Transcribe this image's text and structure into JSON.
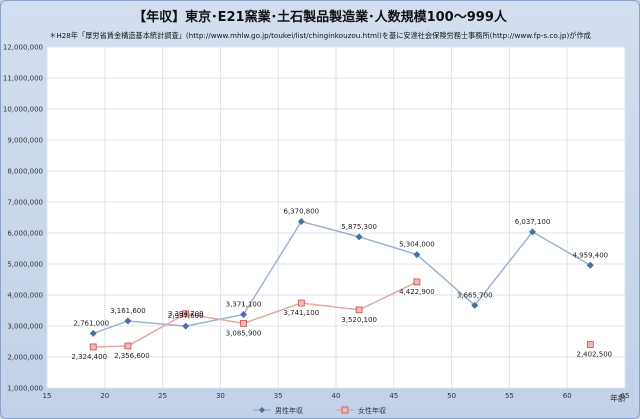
{
  "header": {
    "title": "【年収】東京･E21窯業･土石製品製造業･人数規模100～999人",
    "subtitle": "＊H28年「厚労省賃金構造基本統計調査」(http://www.mhlw.go.jp/toukei/list/chinginkouzou.html)を基に安達社会保険労務士事務所(http://www.fp-s.co.jp)が作成"
  },
  "chart_data": {
    "type": "line",
    "title": "【年収】東京･E21窯業･土石製品製造業･人数規模100～999人",
    "xlabel": "年齢",
    "ylabel": "",
    "xlim": [
      15,
      65
    ],
    "ylim": [
      1000000,
      12000000
    ],
    "x_ticks": [
      "15",
      "20",
      "25",
      "30",
      "35",
      "40",
      "45",
      "50",
      "55",
      "60",
      "65"
    ],
    "y_ticks": [
      "1,000,000",
      "2,000,000",
      "3,000,000",
      "4,000,000",
      "5,000,000",
      "6,000,000",
      "7,000,000",
      "8,000,000",
      "9,000,000",
      "10,000,000",
      "11,000,000",
      "12,000,000"
    ],
    "grid": true,
    "legend_position": "bottom",
    "series": [
      {
        "name": "男性年収",
        "color": "#4a6fa5",
        "marker": "diamond",
        "x": [
          19,
          22,
          27,
          32,
          37,
          42,
          47,
          52,
          57,
          62
        ],
        "y": [
          2761000,
          3161600,
          2997600,
          3371100,
          6370800,
          5875300,
          5304000,
          3665700,
          6037100,
          4959400
        ],
        "labels": [
          "2,761,000",
          "3,161,600",
          "2,997,600",
          "3,371,100",
          "6,370,800",
          "5,875,300",
          "5,304,000",
          "3,665,700",
          "6,037,100",
          "4,959,400"
        ]
      },
      {
        "name": "女性年収",
        "color": "#c0504d",
        "marker": "square",
        "x": [
          19,
          22,
          27,
          32,
          37,
          42,
          47,
          62
        ],
        "y": [
          2324400,
          2356600,
          3394700,
          3085900,
          3741100,
          3520100,
          4422900,
          2402500
        ],
        "labels": [
          "2,324,400",
          "2,356,600",
          "3,394,700",
          "3,085,900",
          "3,741,100",
          "3,520,100",
          "4,422,900",
          "2,402,500"
        ],
        "segments": [
          [
            0,
            6
          ],
          [
            7,
            7
          ]
        ]
      }
    ]
  }
}
